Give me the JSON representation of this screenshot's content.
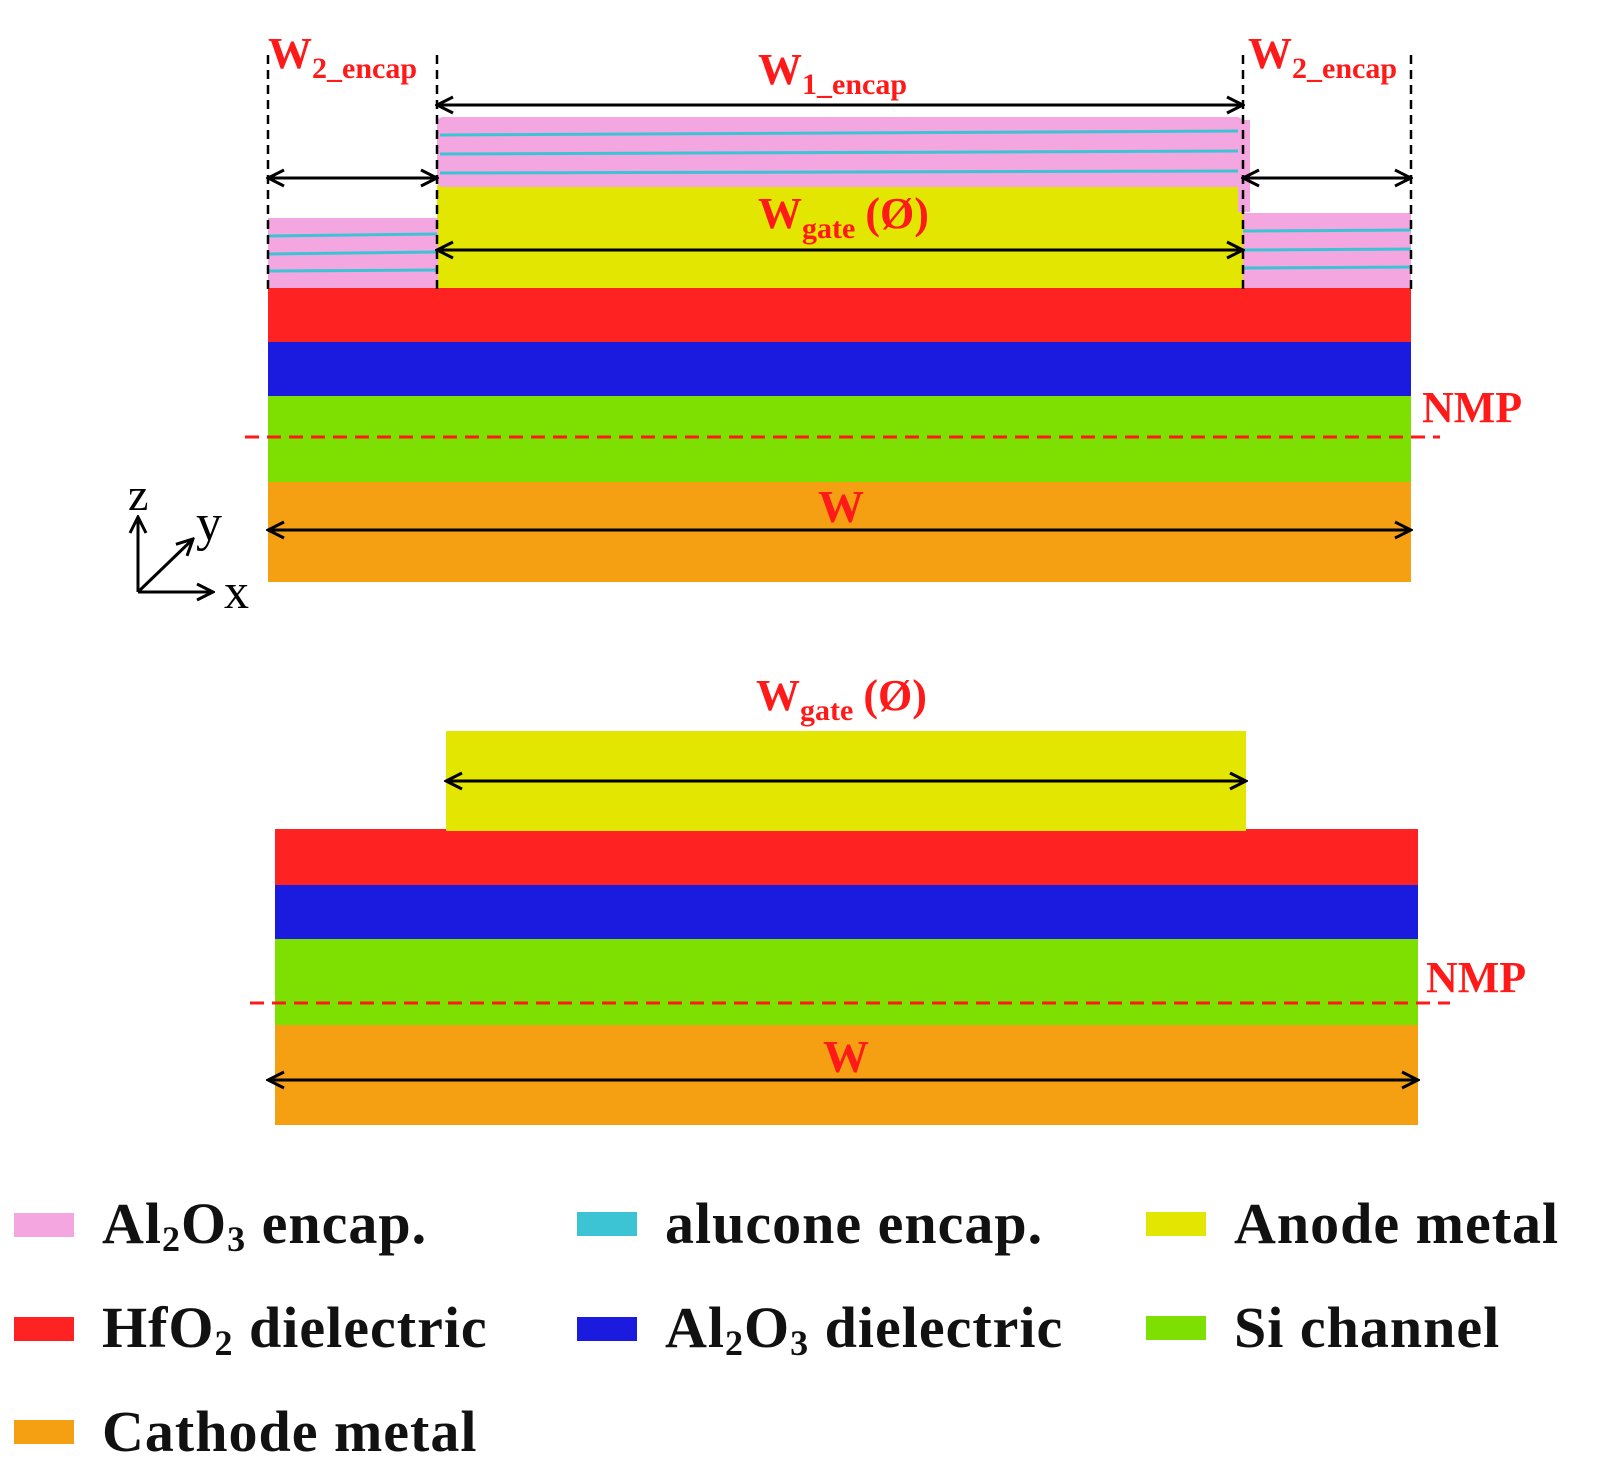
{
  "colors": {
    "al2o3_encap": "#f4a6e0",
    "alucone_encap": "#3cc4d4",
    "anode_metal": "#e3e600",
    "hfo2_dielectric": "#ff2222",
    "al2o3_dielectric": "#1b1be0",
    "si_channel": "#7de000",
    "cathode_metal": "#f5a012",
    "annotation": "#ff1a1a"
  },
  "top_diagram": {
    "w2_encap_left": {
      "main": "W",
      "sub": "2_encap"
    },
    "w1_encap": {
      "main": "W",
      "sub": "1_encap"
    },
    "w2_encap_right": {
      "main": "W",
      "sub": "2_encap"
    },
    "w_gate": {
      "main": "W",
      "sub": "gate",
      "suffix": "(Ø)"
    },
    "nmp": "NMP",
    "w": "W",
    "axes": {
      "z": "z",
      "y": "y",
      "x": "x"
    }
  },
  "bottom_diagram": {
    "w_gate": {
      "main": "W",
      "sub": "gate",
      "suffix": "(Ø)"
    },
    "nmp": "NMP",
    "w": "W"
  },
  "legend": [
    {
      "key": "al2o3_encap",
      "pre": "Al",
      "s1": "2",
      "mid": "O",
      "s2": "3",
      "post": " encap."
    },
    {
      "key": "alucone_encap",
      "pre": "alucone encap.",
      "s1": "",
      "mid": "",
      "s2": "",
      "post": ""
    },
    {
      "key": "anode_metal",
      "pre": "Anode metal",
      "s1": "",
      "mid": "",
      "s2": "",
      "post": ""
    },
    {
      "key": "hfo2_dielectric",
      "pre": "HfO",
      "s1": "2",
      "mid": "",
      "s2": "",
      "post": " dielectric"
    },
    {
      "key": "al2o3_dielectric",
      "pre": "Al",
      "s1": "2",
      "mid": "O",
      "s2": "3",
      "post": " dielectric"
    },
    {
      "key": "si_channel",
      "pre": "Si channel",
      "s1": "",
      "mid": "",
      "s2": "",
      "post": ""
    },
    {
      "key": "cathode_metal",
      "pre": "Cathode metal",
      "s1": "",
      "mid": "",
      "s2": "",
      "post": ""
    }
  ]
}
